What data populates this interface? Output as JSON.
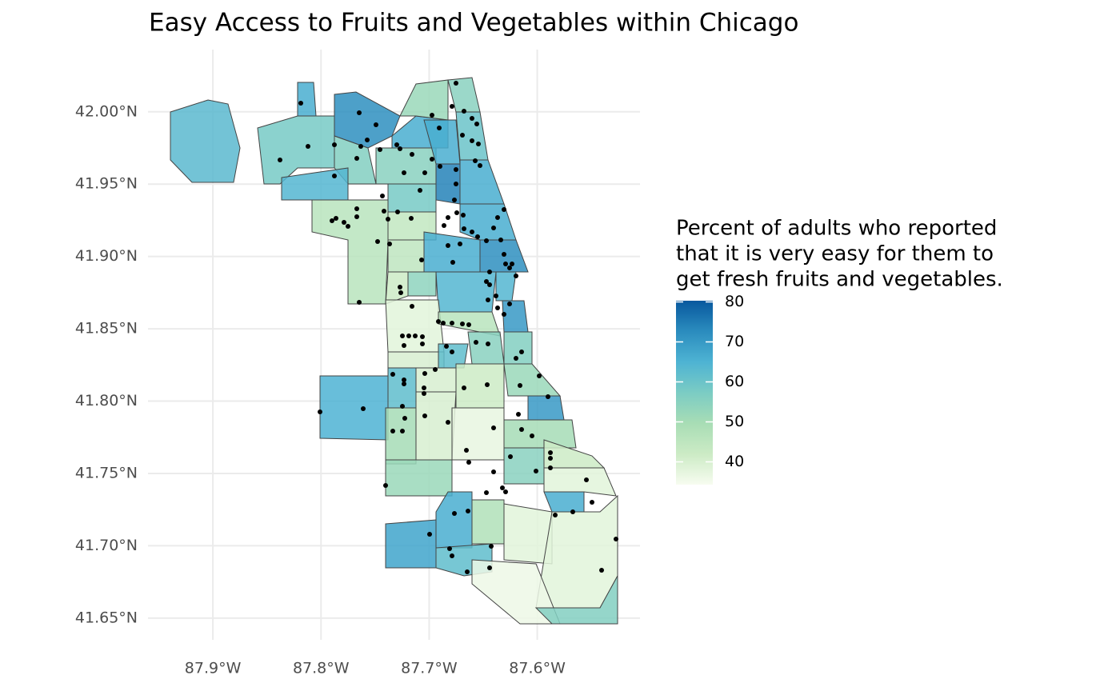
{
  "chart_data": {
    "type": "map",
    "title": "Easy Access to Fruits and Vegetables within Chicago",
    "xlim": [
      -87.96,
      -87.505
    ],
    "ylim": [
      41.635,
      42.043
    ],
    "xticks": [
      {
        "value": -87.9,
        "label": "87.9°W"
      },
      {
        "value": -87.8,
        "label": "87.8°W"
      },
      {
        "value": -87.7,
        "label": "87.7°W"
      },
      {
        "value": -87.6,
        "label": "87.6°W"
      }
    ],
    "yticks": [
      {
        "value": 41.65,
        "label": "41.65°N"
      },
      {
        "value": 41.7,
        "label": "41.70°N"
      },
      {
        "value": 41.75,
        "label": "41.75°N"
      },
      {
        "value": 41.8,
        "label": "41.80°N"
      },
      {
        "value": 41.85,
        "label": "41.85°N"
      },
      {
        "value": 41.9,
        "label": "41.90°N"
      },
      {
        "value": 41.95,
        "label": "41.95°N"
      },
      {
        "value": 42.0,
        "label": "42.00°N"
      }
    ],
    "grid": true,
    "values": [
      63,
      66,
      58,
      72,
      56,
      64,
      46,
      55,
      66,
      52,
      55,
      60,
      66,
      74,
      66,
      58,
      44,
      66,
      66,
      72,
      45,
      54,
      42,
      64,
      64,
      70,
      38,
      40,
      46,
      55,
      62,
      56,
      52,
      40,
      62,
      65,
      42,
      70,
      40,
      50,
      37,
      50,
      55,
      42,
      52,
      38,
      66,
      66,
      48,
      38,
      38,
      68,
      62,
      36,
      56
    ],
    "legend_title": [
      "Percent of adults who reported",
      "that it is very easy for them to",
      "get fresh fruits and vegetables."
    ],
    "legend_lim": [
      34.3,
      80.3
    ],
    "legend_ticks": [
      80,
      70,
      60,
      50,
      40
    ],
    "legend_colors": [
      "#f7fcf0",
      "#ccebc5",
      "#a8ddb5",
      "#7bccc4",
      "#4eb3d3",
      "#2b8cbe",
      "#08589e"
    ]
  }
}
